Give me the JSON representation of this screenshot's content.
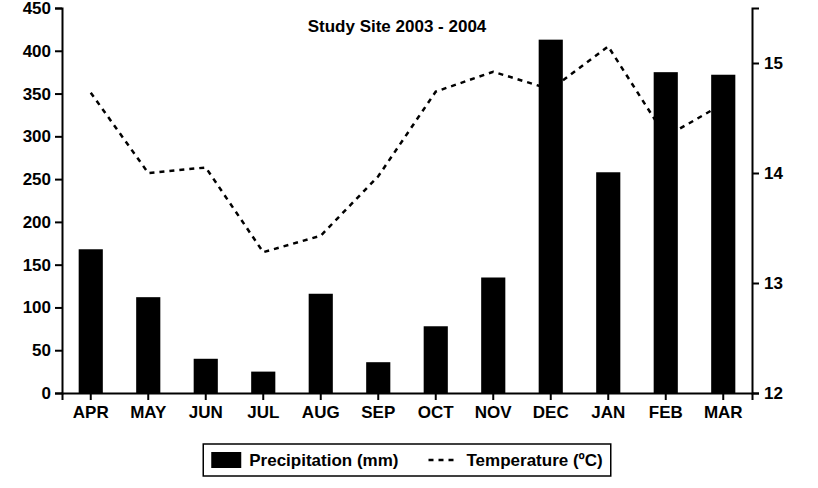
{
  "chart_data": {
    "type": "bar",
    "title": "Study Site 2003 - 2004",
    "categories": [
      "APR",
      "MAY",
      "JUN",
      "JUL",
      "AUG",
      "SEP",
      "OCT",
      "NOV",
      "DEC",
      "JAN",
      "FEB",
      "MAR"
    ],
    "series": [
      {
        "name": "Precipitation (mm)",
        "type": "bar",
        "color": "#000000",
        "values": [
          168,
          112,
          40,
          25,
          116,
          36,
          78,
          135,
          413,
          258,
          375,
          372
        ]
      },
      {
        "name": "Temperature (ºC)",
        "type": "line",
        "axis": "y2",
        "color": "#000000",
        "line_style": "dashed",
        "values": [
          14.73,
          14.0,
          14.05,
          13.28,
          13.43,
          13.97,
          14.74,
          14.92,
          14.76,
          15.15,
          14.33,
          14.63
        ]
      }
    ],
    "ylim": [
      0,
      450
    ],
    "yticks": [
      0,
      50,
      100,
      150,
      200,
      250,
      300,
      350,
      400,
      450
    ],
    "y2lim": [
      12,
      15.5
    ],
    "y2ticks": [
      12,
      13,
      14,
      15
    ],
    "legend": "bottom"
  }
}
